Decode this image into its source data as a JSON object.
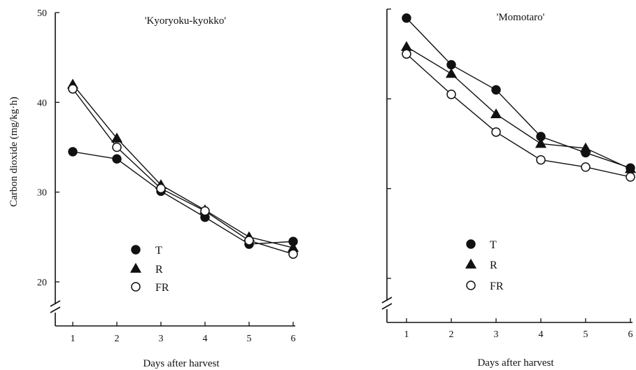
{
  "chart_data": [
    {
      "type": "line",
      "title": "'Kyoryoku-kyokko'",
      "xlabel": "Days after harvest",
      "ylabel": "Carbon dioxide (mg/kg·h)",
      "ylim": [
        20,
        50
      ],
      "y_axis_break": true,
      "yticks": [
        20,
        30,
        40,
        50
      ],
      "x": [
        1,
        2,
        3,
        4,
        5,
        6
      ],
      "series": [
        {
          "name": "T",
          "marker": "filled-circle",
          "values": [
            34.5,
            33.7,
            30.1,
            27.2,
            24.2,
            24.5
          ]
        },
        {
          "name": "R",
          "marker": "filled-triangle",
          "values": [
            42.0,
            36.0,
            30.8,
            28.0,
            25.0,
            23.8
          ]
        },
        {
          "name": "FR",
          "marker": "open-circle",
          "values": [
            41.5,
            35.0,
            30.4,
            27.9,
            24.6,
            23.1
          ]
        }
      ],
      "legend_position": "bottom-center"
    },
    {
      "type": "line",
      "title": "'Momotaro'",
      "xlabel": "Days after harvest",
      "ylabel": "",
      "ylim": [
        20,
        50
      ],
      "y_axis_break": true,
      "yticks": [
        20,
        30,
        40,
        50
      ],
      "x": [
        1,
        2,
        3,
        4,
        5,
        6
      ],
      "series": [
        {
          "name": "T",
          "marker": "filled-circle",
          "values": [
            49.0,
            43.8,
            41.0,
            35.8,
            34.0,
            32.3
          ]
        },
        {
          "name": "R",
          "marker": "filled-triangle",
          "values": [
            45.8,
            42.8,
            38.3,
            35.0,
            34.5,
            32.2
          ]
        },
        {
          "name": "FR",
          "marker": "open-circle",
          "values": [
            45.0,
            40.5,
            36.3,
            33.2,
            32.4,
            31.3
          ]
        }
      ],
      "legend_position": "bottom-center"
    }
  ]
}
